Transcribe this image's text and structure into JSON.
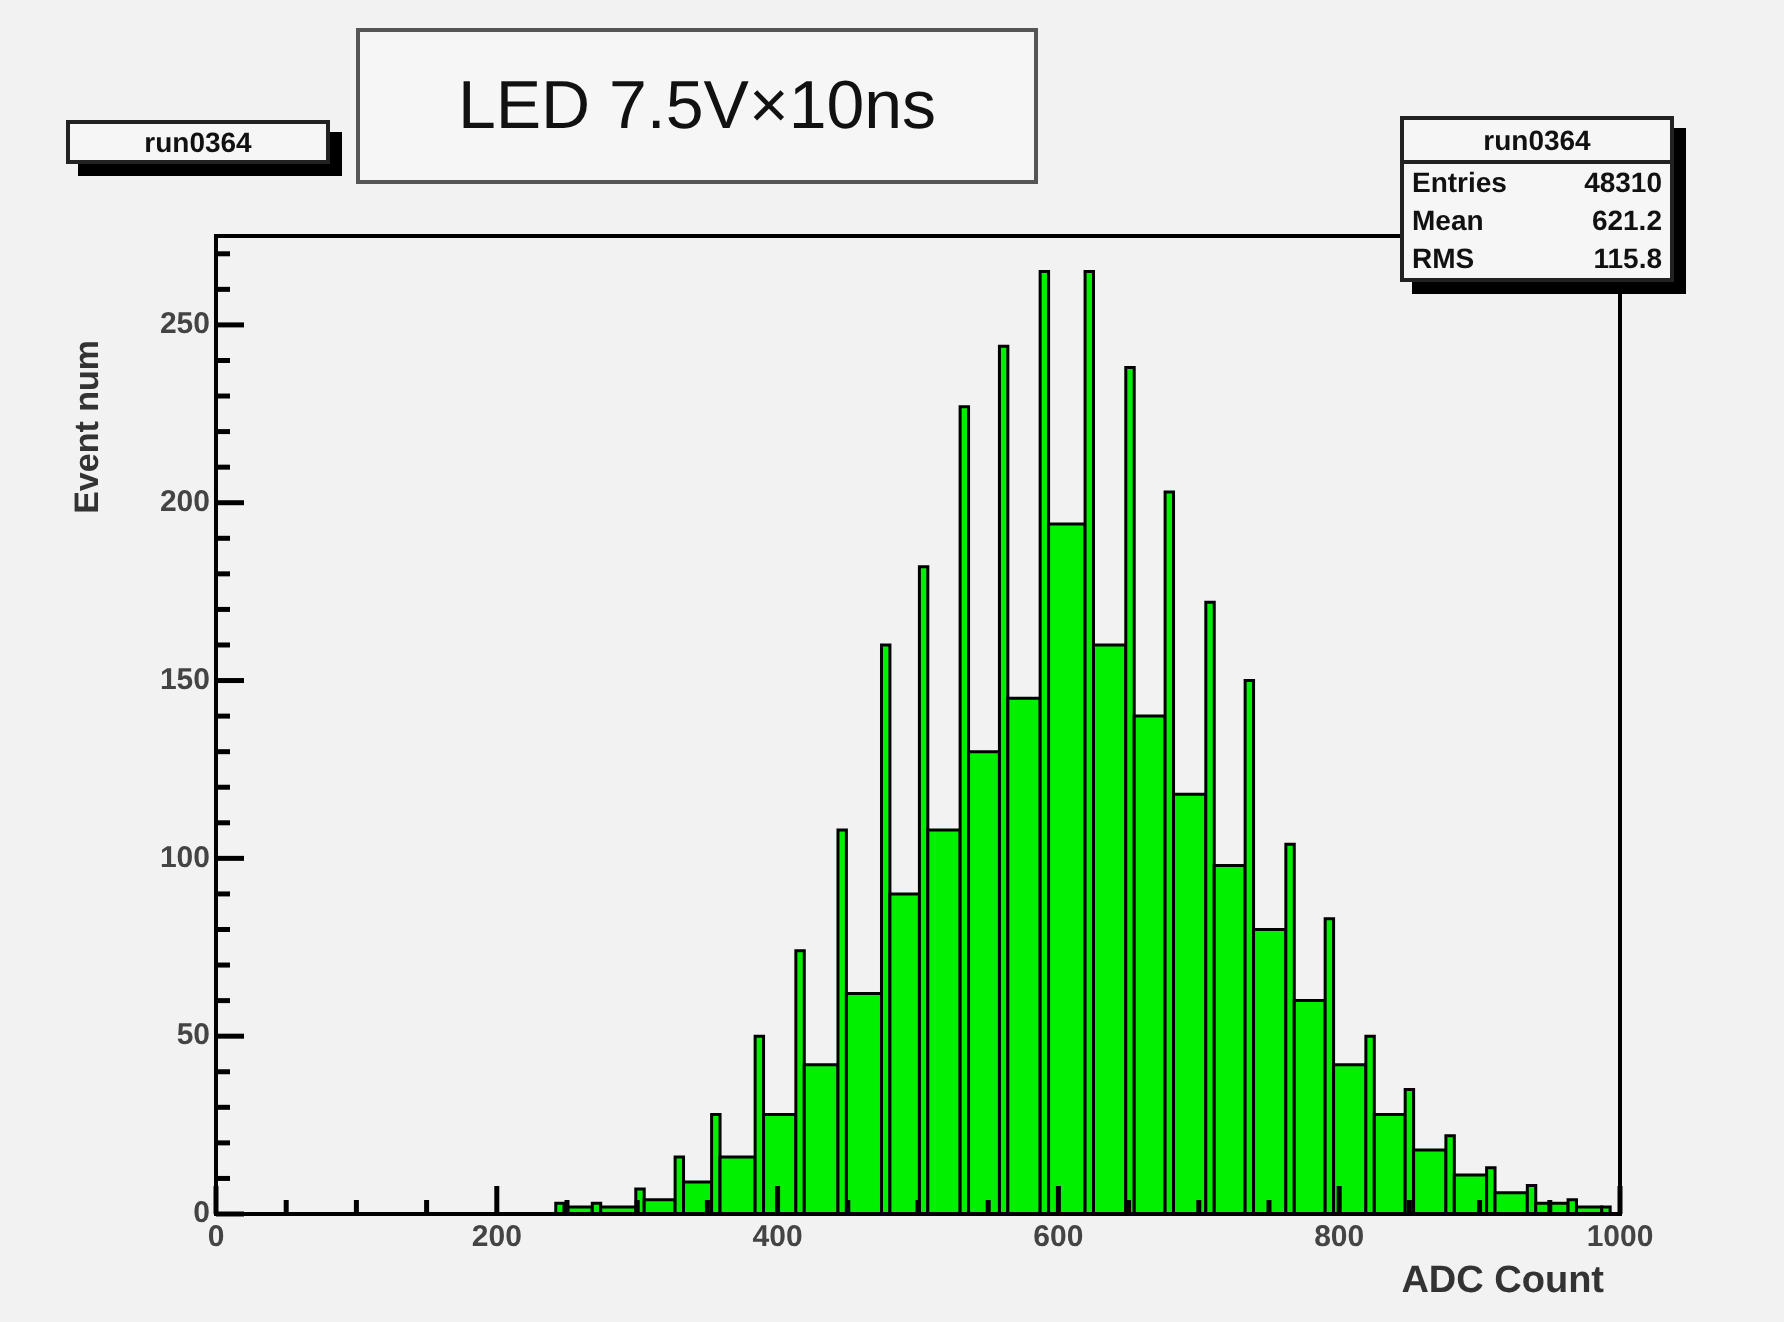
{
  "chart_data": {
    "type": "histogram",
    "title": "LED 7.5V×10ns",
    "xlabel": "ADC Count",
    "ylabel": "Event num",
    "annotations": [
      "run0364",
      "run0364",
      "Entries 48310",
      "Mean 621.2",
      "RMS 115.8"
    ],
    "color": "#00f000",
    "bins": [
      242,
      248,
      268,
      274,
      299,
      305,
      327,
      333,
      353,
      359,
      384,
      390,
      413,
      419,
      443,
      449,
      474,
      480,
      501,
      507,
      530,
      536,
      558,
      564,
      587,
      593,
      619,
      625,
      648,
      654,
      676,
      682,
      705,
      711,
      733,
      739,
      762,
      768,
      790,
      796,
      819,
      825,
      847,
      853,
      876,
      882,
      905,
      911,
      934,
      940,
      963,
      969,
      987,
      993
    ],
    "values": [
      3,
      2,
      3,
      2,
      7,
      4,
      16,
      9,
      28,
      16,
      50,
      28,
      74,
      42,
      108,
      62,
      160,
      90,
      182,
      108,
      227,
      130,
      244,
      145,
      265,
      194,
      265,
      160,
      238,
      140,
      203,
      118,
      172,
      98,
      150,
      80,
      104,
      60,
      83,
      42,
      50,
      28,
      35,
      18,
      22,
      11,
      13,
      6,
      8,
      3,
      4,
      2,
      2
    ],
    "xlim": [
      0,
      1000
    ],
    "ylim": [
      0,
      275
    ],
    "xticks": [
      0,
      {
        "value": 50,
        "label": null
      },
      {
        "value": 100,
        "label": null
      },
      {
        "value": 150,
        "label": null
      },
      200,
      {
        "value": 250,
        "label": null
      },
      {
        "value": 300,
        "label": null
      },
      {
        "value": 350,
        "label": null
      },
      400,
      {
        "value": 450,
        "label": null
      },
      {
        "value": 500,
        "label": null
      },
      {
        "value": 550,
        "label": null
      },
      600,
      {
        "value": 650,
        "label": null
      },
      {
        "value": 700,
        "label": null
      },
      {
        "value": 750,
        "label": null
      },
      800,
      {
        "value": 850,
        "label": null
      },
      {
        "value": 900,
        "label": null
      },
      {
        "value": 950,
        "label": null
      },
      1000
    ],
    "yticks": [
      0,
      {
        "value": 10,
        "label": null
      },
      {
        "value": 20,
        "label": null
      },
      {
        "value": 30,
        "label": null
      },
      {
        "value": 40,
        "label": null
      },
      50,
      {
        "value": 60,
        "label": null
      },
      {
        "value": 70,
        "label": null
      },
      {
        "value": 80,
        "label": null
      },
      {
        "value": 90,
        "label": null
      },
      100,
      {
        "value": 110,
        "label": null
      },
      {
        "value": 120,
        "label": null
      },
      {
        "value": 130,
        "label": null
      },
      {
        "value": 140,
        "label": null
      },
      150,
      {
        "value": 160,
        "label": null
      },
      {
        "value": 170,
        "label": null
      },
      {
        "value": 180,
        "label": null
      },
      {
        "value": 190,
        "label": null
      },
      200,
      {
        "value": 210,
        "label": null
      },
      {
        "value": 220,
        "label": null
      },
      {
        "value": 230,
        "label": null
      },
      {
        "value": 240,
        "label": null
      },
      250,
      {
        "value": 260,
        "label": null
      },
      {
        "value": 270,
        "label": null
      }
    ]
  }
}
